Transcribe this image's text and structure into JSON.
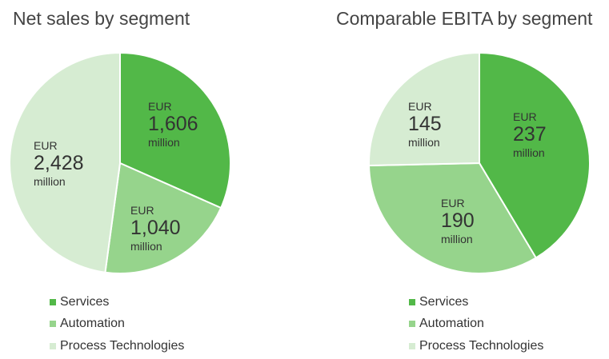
{
  "chart_data": [
    {
      "type": "pie",
      "title": "Net sales by segment",
      "slices": [
        {
          "name": "Services",
          "value": 1606,
          "currency": "EUR",
          "value_label": "1,606",
          "unit": "million",
          "color": "#52b848"
        },
        {
          "name": "Automation",
          "value": 1040,
          "currency": "EUR",
          "value_label": "1,040",
          "unit": "million",
          "color": "#96d48c"
        },
        {
          "name": "Process Technologies",
          "value": 2428,
          "currency": "EUR",
          "value_label": "2,428",
          "unit": "million",
          "color": "#d6ecd2"
        }
      ],
      "legend": [
        "Services",
        "Automation",
        "Process Technologies"
      ],
      "legend_position": "bottom"
    },
    {
      "type": "pie",
      "title": "Comparable EBITA by segment",
      "slices": [
        {
          "name": "Services",
          "value": 237,
          "currency": "EUR",
          "value_label": "237",
          "unit": "million",
          "color": "#52b848"
        },
        {
          "name": "Automation",
          "value": 190,
          "currency": "EUR",
          "value_label": "190",
          "unit": "million",
          "color": "#96d48c"
        },
        {
          "name": "Process Technologies",
          "value": 145,
          "currency": "EUR",
          "value_label": "145",
          "unit": "million",
          "color": "#d6ecd2"
        }
      ],
      "legend": [
        "Services",
        "Automation",
        "Process Technologies"
      ],
      "legend_position": "bottom"
    }
  ]
}
